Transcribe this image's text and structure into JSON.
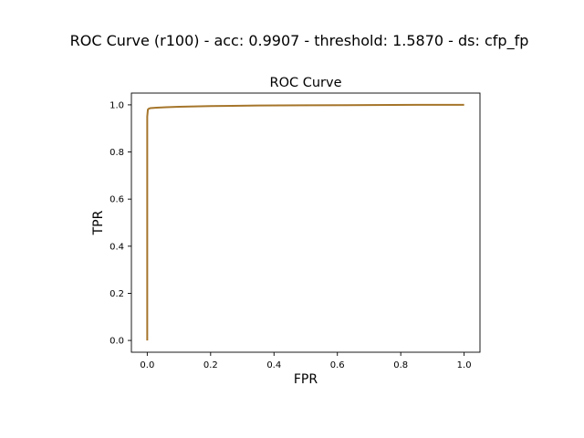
{
  "figure": {
    "suptitle": "ROC Curve (r100) - acc: 0.9907 - threshold: 1.5870 - ds: cfp_fp"
  },
  "chart_data": {
    "type": "line",
    "title": "ROC Curve",
    "xlabel": "FPR",
    "ylabel": "TPR",
    "xlim": [
      -0.05,
      1.05
    ],
    "ylim": [
      -0.05,
      1.05
    ],
    "xticks": [
      0.0,
      0.2,
      0.4,
      0.6,
      0.8,
      1.0
    ],
    "yticks": [
      0.0,
      0.2,
      0.4,
      0.6,
      0.8,
      1.0
    ],
    "xtick_labels": [
      "0.0",
      "0.2",
      "0.4",
      "0.6",
      "0.8",
      "1.0"
    ],
    "ytick_labels": [
      "0.0",
      "0.2",
      "0.4",
      "0.6",
      "0.8",
      "1.0"
    ],
    "grid": false,
    "series": [
      {
        "color": "#a5752a",
        "x": [
          0.0,
          0.0,
          0.002,
          0.005,
          0.01,
          0.03,
          0.06,
          0.1,
          0.2,
          0.35,
          0.5,
          0.7,
          0.85,
          1.0
        ],
        "y": [
          0.0,
          0.95,
          0.98,
          0.984,
          0.986,
          0.988,
          0.99,
          0.992,
          0.995,
          0.997,
          0.998,
          0.999,
          1.0,
          1.0
        ]
      }
    ]
  }
}
